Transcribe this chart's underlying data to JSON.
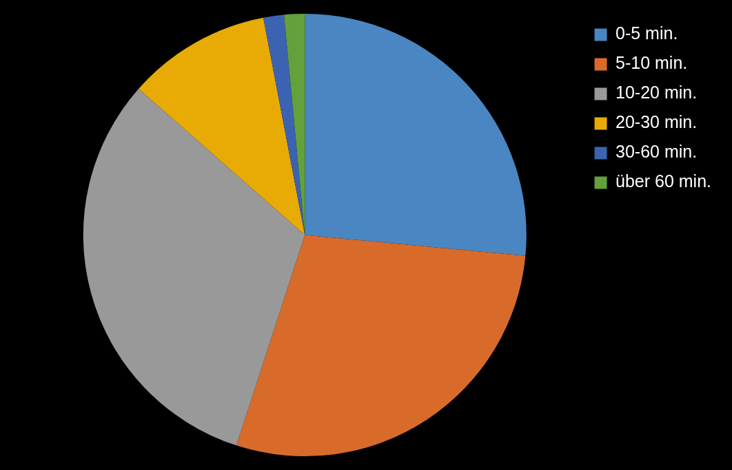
{
  "chart_data": {
    "type": "pie",
    "categories": [
      "0-5 min.",
      "5-10 min.",
      "10-20 min.",
      "20-30 min.",
      "30-60 min.",
      "über 60 min."
    ],
    "values": [
      26.5,
      28.5,
      31.5,
      10.5,
      1.5,
      1.5
    ],
    "colors": [
      "#4a86c2",
      "#d96b2a",
      "#999999",
      "#e8ab06",
      "#3b63b2",
      "#64a03c"
    ],
    "legend": "top right"
  }
}
